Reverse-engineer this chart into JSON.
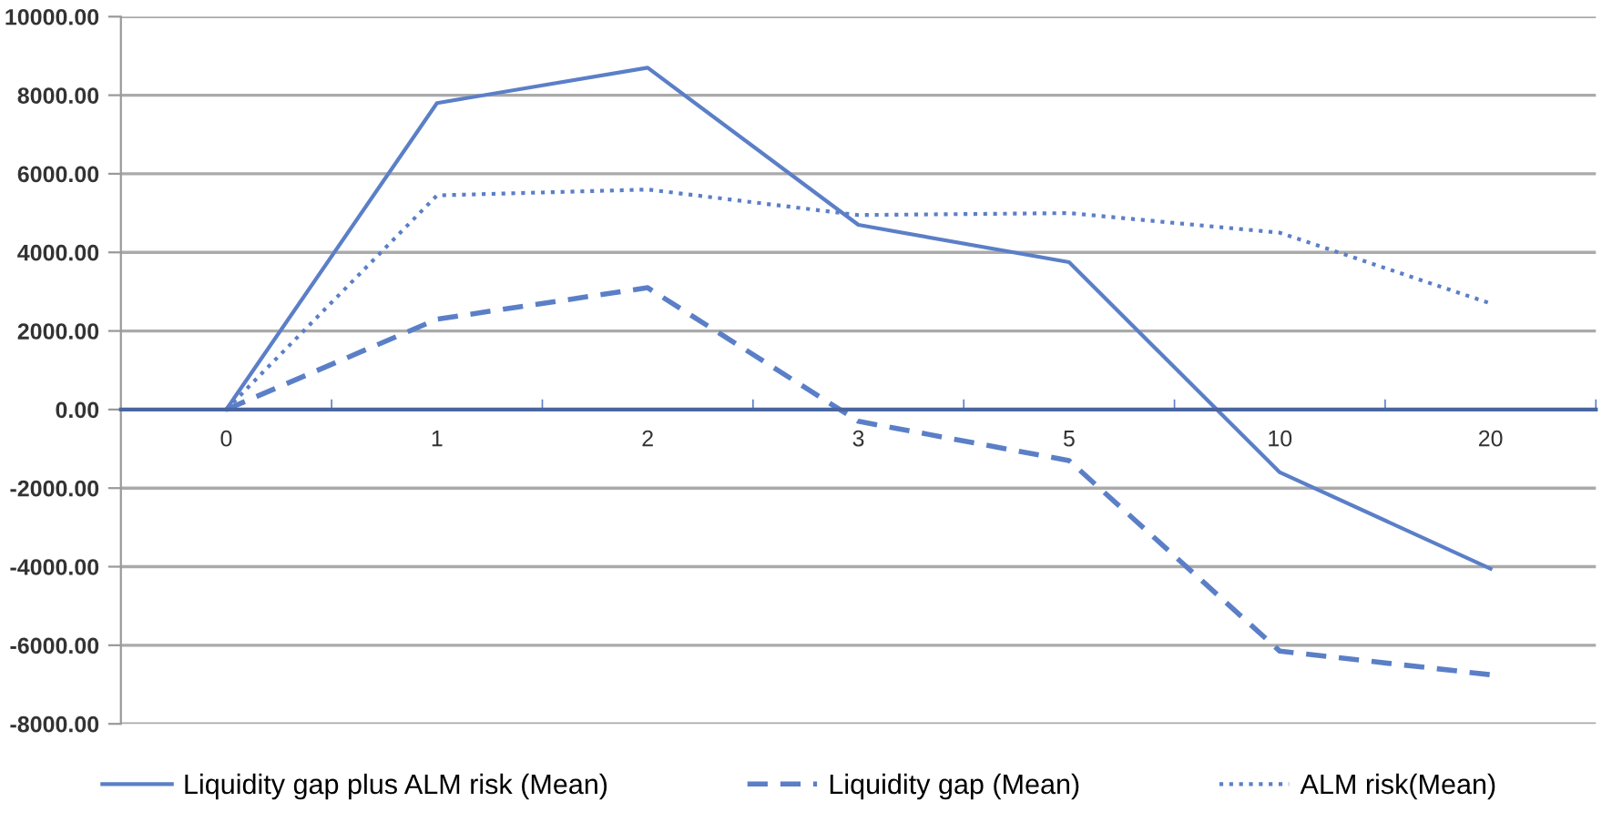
{
  "chart_data": {
    "type": "line",
    "categories": [
      "0",
      "1",
      "2",
      "3",
      "5",
      "10",
      "20"
    ],
    "series": [
      {
        "name": "Liquidity gap plus ALM risk (Mean)",
        "color": "#5b7fc7",
        "line_style": "solid",
        "values": [
          0,
          7800,
          8700,
          4700,
          3750,
          -1600,
          -4050
        ]
      },
      {
        "name": "Liquidity gap (Mean)",
        "color": "#5b7fc7",
        "line_style": "dashed",
        "values": [
          0,
          2300,
          3100,
          -300,
          -1300,
          -6150,
          -6750
        ]
      },
      {
        "name": "ALM risk(Mean)",
        "color": "#5b7fc7",
        "line_style": "dotted",
        "values": [
          0,
          5450,
          5600,
          4950,
          5000,
          4500,
          2700
        ]
      }
    ],
    "ylim": [
      -8000,
      10000
    ],
    "yticks": [
      {
        "value": -8000,
        "label": "-8000.00"
      },
      {
        "value": -6000,
        "label": "-6000.00"
      },
      {
        "value": -4000,
        "label": "-4000.00"
      },
      {
        "value": -2000,
        "label": "-2000.00"
      },
      {
        "value": 0,
        "label": "0.00"
      },
      {
        "value": 2000,
        "label": "2000.00"
      },
      {
        "value": 4000,
        "label": "4000.00"
      },
      {
        "value": 6000,
        "label": "6000.00"
      },
      {
        "value": 8000,
        "label": "8000.00"
      },
      {
        "value": 10000,
        "label": "10000.00"
      }
    ],
    "grid": "y",
    "legend": "bottom",
    "marker": "none"
  }
}
